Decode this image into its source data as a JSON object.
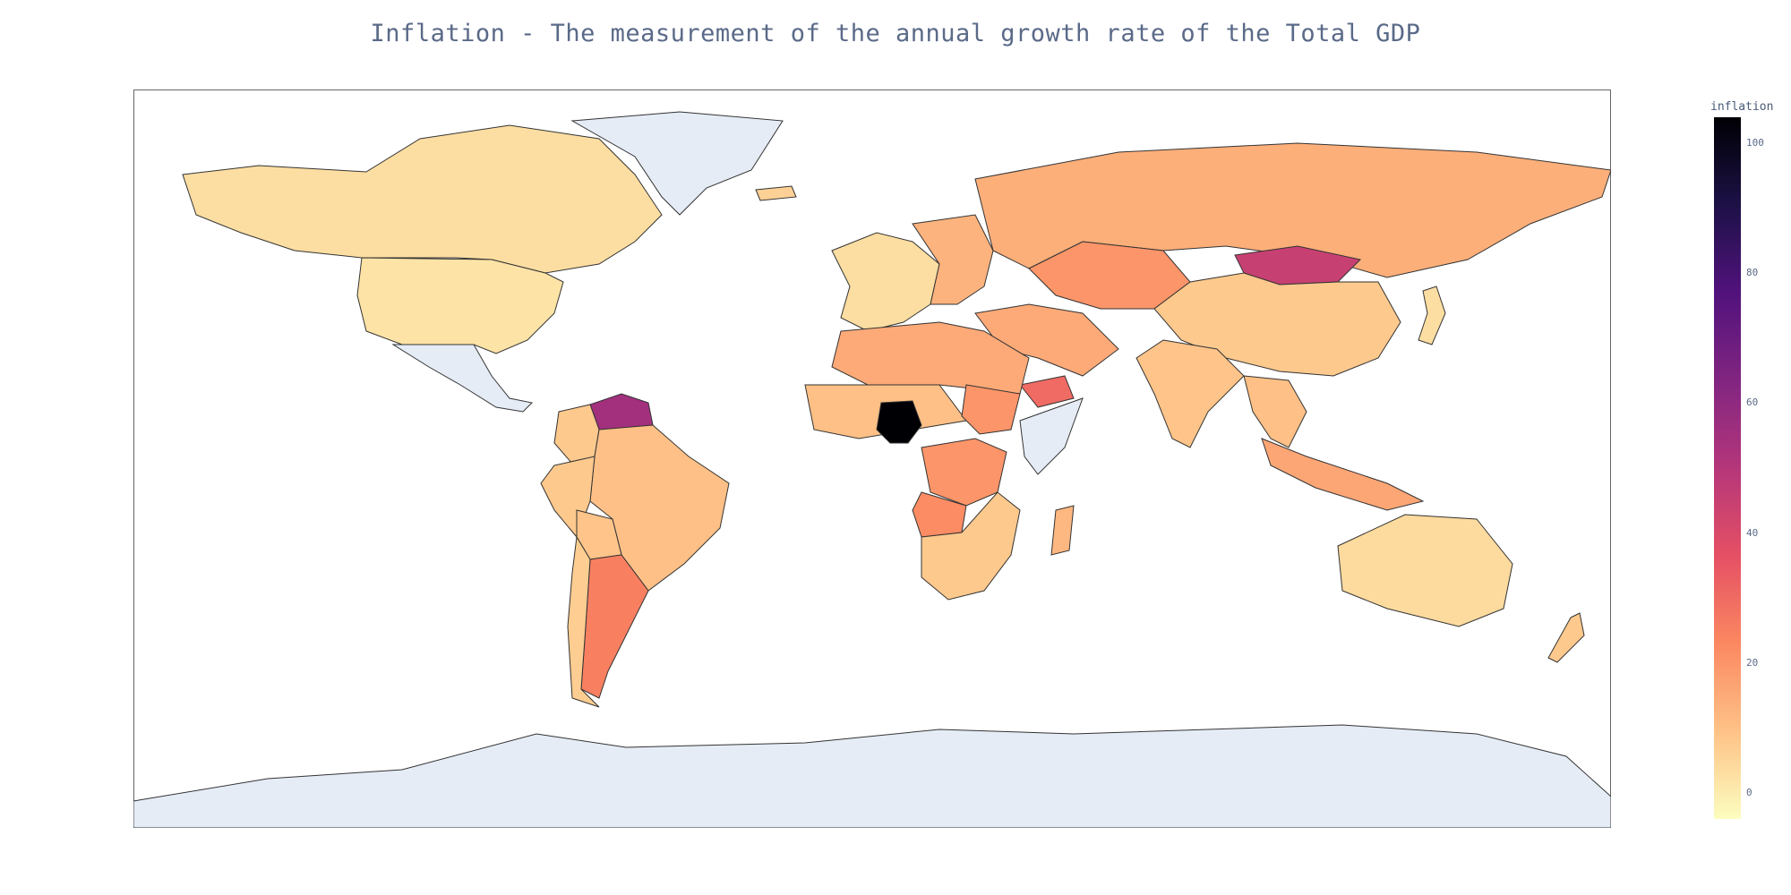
{
  "title": "Inflation - The measurement of the annual growth rate of the Total GDP",
  "colorbar": {
    "title": "inflation",
    "ticks": [
      "100",
      "80",
      "60",
      "40",
      "20",
      "0"
    ],
    "range": [
      -4,
      104
    ],
    "stops": [
      "#fcfdbf",
      "#fec287",
      "#fb8861",
      "#e55064",
      "#b5367a",
      "#812581",
      "#51127c",
      "#1d1147",
      "#000004"
    ]
  },
  "no_data_color": "#e5ecf6",
  "chart_data": {
    "type": "choropleth",
    "title": "Inflation - The measurement of the annual growth rate of the Total GDP",
    "colorbar_title": "inflation",
    "colorscale": "magma (reversed)",
    "range": [
      -4,
      104
    ],
    "regions": [
      {
        "name": "Canada",
        "value": 3
      },
      {
        "name": "United States",
        "value": 2
      },
      {
        "name": "Mexico",
        "value": null
      },
      {
        "name": "Venezuela",
        "value": 55
      },
      {
        "name": "Colombia",
        "value": 8
      },
      {
        "name": "Brazil",
        "value": 10
      },
      {
        "name": "Peru",
        "value": 8
      },
      {
        "name": "Bolivia",
        "value": 9
      },
      {
        "name": "Argentina",
        "value": 25
      },
      {
        "name": "Chile",
        "value": 7
      },
      {
        "name": "Greenland",
        "value": null
      },
      {
        "name": "Iceland",
        "value": 6
      },
      {
        "name": "Western Europe",
        "value": 3
      },
      {
        "name": "Eastern Europe",
        "value": 13
      },
      {
        "name": "Russia",
        "value": 14
      },
      {
        "name": "Kazakhstan",
        "value": 20
      },
      {
        "name": "Mongolia",
        "value": 45
      },
      {
        "name": "China",
        "value": 8
      },
      {
        "name": "India",
        "value": 9
      },
      {
        "name": "Middle East",
        "value": 15
      },
      {
        "name": "Yemen",
        "value": 30
      },
      {
        "name": "North Africa",
        "value": 15
      },
      {
        "name": "Sahel",
        "value": 10
      },
      {
        "name": "Nigeria",
        "value": 104
      },
      {
        "name": "Sudan",
        "value": 20
      },
      {
        "name": "Somalia",
        "value": null
      },
      {
        "name": "DR Congo",
        "value": 20
      },
      {
        "name": "Angola",
        "value": 22
      },
      {
        "name": "Southern Africa",
        "value": 8
      },
      {
        "name": "Madagascar",
        "value": 12
      },
      {
        "name": "Southeast Asia",
        "value": 10
      },
      {
        "name": "Indonesia",
        "value": 16
      },
      {
        "name": "Japan",
        "value": 3
      },
      {
        "name": "Australia",
        "value": 4
      },
      {
        "name": "New Zealand",
        "value": 8
      },
      {
        "name": "Antarctica",
        "value": null
      }
    ]
  }
}
